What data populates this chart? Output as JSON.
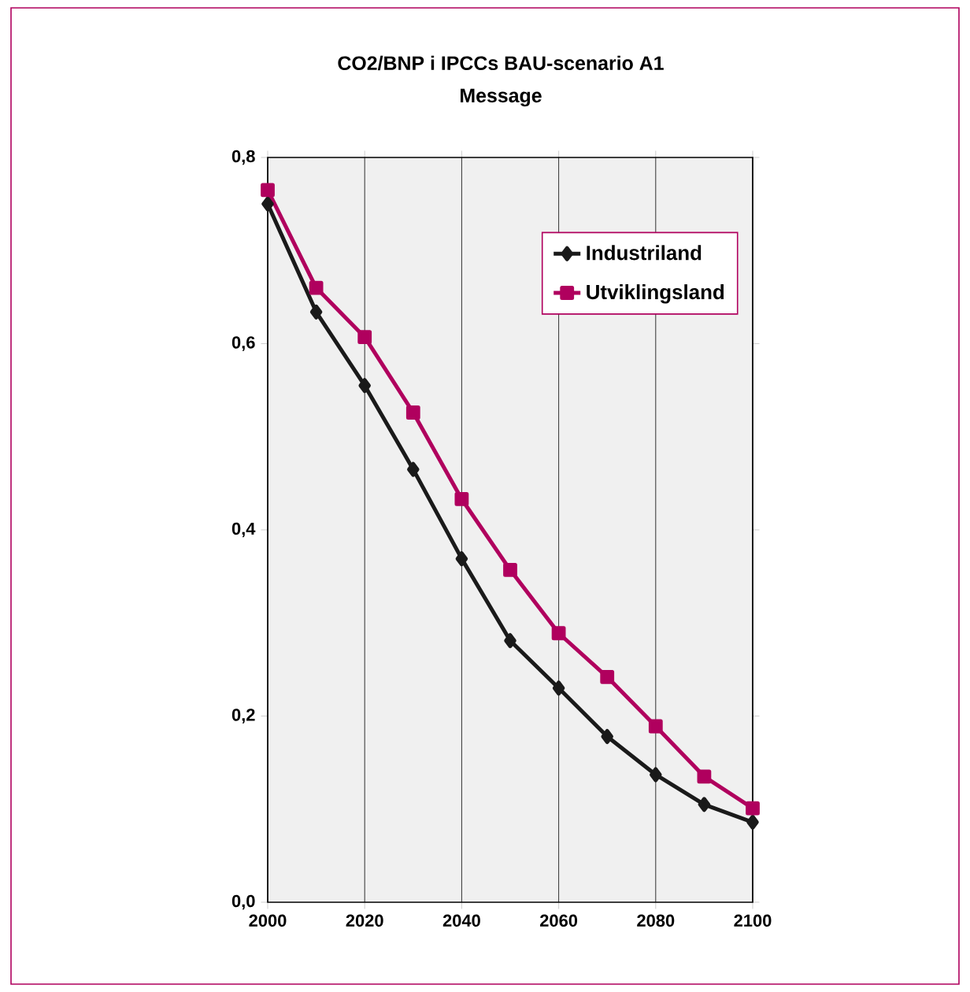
{
  "chart_data": {
    "type": "line",
    "title": "CO2/BNP i IPCCs BAU-scenario A1",
    "subtitle": "Message",
    "x": [
      2000,
      2010,
      2020,
      2030,
      2040,
      2050,
      2060,
      2070,
      2080,
      2090,
      2100
    ],
    "series": [
      {
        "name": "Industriland",
        "color": "#1a1a1a",
        "marker": "diamond",
        "values": [
          0.75,
          0.634,
          0.555,
          0.465,
          0.369,
          0.281,
          0.23,
          0.178,
          0.137,
          0.105,
          0.086
        ]
      },
      {
        "name": "Utviklingsland",
        "color": "#b0005e",
        "marker": "square",
        "values": [
          0.765,
          0.66,
          0.607,
          0.526,
          0.433,
          0.357,
          0.289,
          0.242,
          0.189,
          0.135,
          0.101
        ]
      }
    ],
    "xlim": [
      2000,
      2100
    ],
    "xticks": [
      2000,
      2020,
      2040,
      2060,
      2080,
      2100
    ],
    "ylim": [
      0,
      0.8
    ],
    "yticks": [
      {
        "value": 0,
        "label": "0,0"
      },
      {
        "value": 0.2,
        "label": "0,2"
      },
      {
        "value": 0.4,
        "label": "0,4"
      },
      {
        "value": 0.6,
        "label": "0,6"
      },
      {
        "value": 0.8,
        "label": "0,8"
      }
    ],
    "grid": "x",
    "legend": "top right",
    "line_style": "solid"
  }
}
